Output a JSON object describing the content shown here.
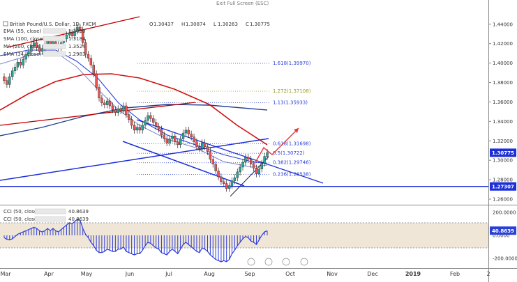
{
  "header": {
    "symbol": "British Pound/U.S. Dollar, 1D, FXCM",
    "ohlc": [
      {
        "k": "O",
        "v": "1.30437"
      },
      {
        "k": "H",
        "v": "1.30874"
      },
      {
        "k": "L",
        "v": "1.30263"
      },
      {
        "k": "C",
        "v": "1.30775"
      }
    ],
    "fullscreen": "Exit Full Screen (ESC)"
  },
  "legend": [
    {
      "label": "EMA (55, close)",
      "value": "1.3030",
      "color": "#2a3fd6"
    },
    {
      "label": "SMA (100, close)",
      "value": "1.3184",
      "color": "#d01010"
    },
    {
      "label": "MA (200, close)",
      "value": "1.3524",
      "color": "#1f3f8f"
    },
    {
      "label": "EMA (34, close)",
      "value": "1.2983",
      "color": "#7a86c4"
    }
  ],
  "cci_legend": [
    {
      "label": "CCI (50, close)",
      "value": "40.8639"
    },
    {
      "label": "CCI (50, close)",
      "value": "40.8639"
    }
  ],
  "colors": {
    "up": "#26a69a",
    "down": "#ef5350",
    "blue_line": "#1c2fd8",
    "red_line": "#c00000",
    "arrow": "#e23b3b",
    "cci": "#2d3dd6",
    "band": "#efe6d7"
  },
  "chart_data": {
    "type": "candlestick",
    "y_ticks": [
      "1.44000",
      "1.42000",
      "1.40000",
      "1.38000",
      "1.36000",
      "1.34000",
      "1.32000",
      "1.30000",
      "1.28000",
      "1.26000"
    ],
    "ylim": [
      1.255,
      1.447
    ],
    "x_ticks": [
      "Mar",
      "Apr",
      "May",
      "Jun",
      "Jul",
      "Aug",
      "Sep",
      "Oct",
      "Nov",
      "Dec",
      "2019",
      "Feb",
      "2"
    ],
    "current_price": "1.30775",
    "support_level": "1.27307",
    "fib_levels": [
      {
        "label": "1.618(1.39970)",
        "value": 1.3997,
        "color": "#2a3fd6"
      },
      {
        "label": "1.272(1.37108)",
        "value": 1.37108,
        "color": "#9a9a1a"
      },
      {
        "label": "1.13(1.35933)",
        "value": 1.35933,
        "color": "#2a3fd6"
      },
      {
        "label": "0.618(1.31698)",
        "value": 1.31698,
        "color": "#2a3fd6"
      },
      {
        "label": "0.5(1.30722)",
        "value": 1.30722,
        "color": "#2a3fd6"
      },
      {
        "label": "0.382(1.29746)",
        "value": 1.29746,
        "color": "#2a3fd6"
      },
      {
        "label": "0.236(1.28538)",
        "value": 1.28538,
        "color": "#2a3fd6"
      }
    ],
    "closes": [
      1.382,
      1.378,
      1.386,
      1.392,
      1.396,
      1.401,
      1.398,
      1.404,
      1.409,
      1.412,
      1.418,
      1.421,
      1.416,
      1.412,
      1.415,
      1.419,
      1.423,
      1.418,
      1.422,
      1.419,
      1.416,
      1.421,
      1.425,
      1.429,
      1.431,
      1.428,
      1.433,
      1.437,
      1.434,
      1.421,
      1.409,
      1.405,
      1.398,
      1.389,
      1.375,
      1.364,
      1.359,
      1.357,
      1.361,
      1.356,
      1.352,
      1.349,
      1.353,
      1.351,
      1.356,
      1.347,
      1.342,
      1.336,
      1.331,
      1.334,
      1.331,
      1.336,
      1.341,
      1.346,
      1.343,
      1.339,
      1.335,
      1.332,
      1.326,
      1.322,
      1.318,
      1.322,
      1.325,
      1.319,
      1.316,
      1.322,
      1.328,
      1.331,
      1.327,
      1.324,
      1.319,
      1.314,
      1.312,
      1.318,
      1.314,
      1.309,
      1.301,
      1.296,
      1.289,
      1.283,
      1.278,
      1.276,
      1.271,
      1.274,
      1.279,
      1.282,
      1.288,
      1.293,
      1.298,
      1.303,
      1.301,
      1.296,
      1.292,
      1.286,
      1.291,
      1.297,
      1.304,
      1.308
    ],
    "cci": [
      -20,
      -35,
      -40,
      -30,
      -10,
      10,
      20,
      30,
      40,
      50,
      60,
      70,
      60,
      40,
      30,
      40,
      60,
      40,
      60,
      40,
      30,
      50,
      70,
      90,
      110,
      100,
      120,
      140,
      130,
      60,
      10,
      -20,
      -60,
      -90,
      -130,
      -150,
      -150,
      -140,
      -120,
      -130,
      -140,
      -140,
      -120,
      -120,
      -100,
      -140,
      -150,
      -160,
      -170,
      -160,
      -160,
      -130,
      -90,
      -60,
      -70,
      -90,
      -110,
      -120,
      -150,
      -160,
      -170,
      -140,
      -120,
      -140,
      -160,
      -120,
      -80,
      -60,
      -80,
      -100,
      -120,
      -140,
      -150,
      -110,
      -120,
      -140,
      -170,
      -190,
      -210,
      -220,
      -230,
      -220,
      -230,
      -210,
      -160,
      -130,
      -90,
      -60,
      -30,
      -10,
      -20,
      -50,
      -60,
      -80,
      -40,
      0,
      30,
      40
    ],
    "cci_ticks": [
      "200.0000",
      "0.0000",
      "-200.0000"
    ],
    "cci_current": "40.8639"
  }
}
